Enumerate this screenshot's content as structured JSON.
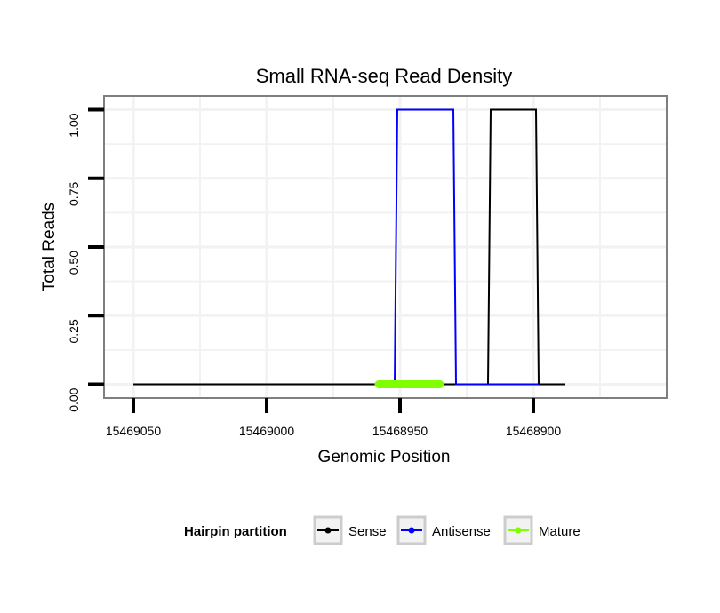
{
  "chart_data": {
    "type": "line",
    "title": "Small RNA-seq Read Density",
    "xlabel": "Genomic Position",
    "ylabel": "Total Reads",
    "x_reversed": true,
    "xlim": [
      15469061,
      15468850
    ],
    "ylim": [
      -0.05,
      1.05
    ],
    "x_ticks": [
      15469050,
      15469000,
      15468950,
      15468900
    ],
    "x_tick_labels": [
      "15469050",
      "15469000",
      "15468950",
      "15468900"
    ],
    "y_ticks": [
      0,
      0.25,
      0.5,
      0.75,
      1
    ],
    "y_tick_labels": [
      "0.00",
      "0.25",
      "0.50",
      "0.75",
      "1.00"
    ],
    "grid": true,
    "series": [
      {
        "name": "Sense",
        "color": "#000000",
        "x": [
          15469050,
          15468917,
          15468916,
          15468899,
          15468898,
          15468888
        ],
        "values": [
          0,
          0,
          1,
          1,
          0,
          0
        ]
      },
      {
        "name": "Antisense",
        "color": "#0000ff",
        "x": [
          15468952,
          15468951,
          15468930,
          15468929,
          15468917,
          15468898
        ],
        "values": [
          0,
          1,
          1,
          0,
          0,
          0
        ]
      },
      {
        "name": "Mature",
        "color": "#7fff00",
        "x": [
          15468958,
          15468935
        ],
        "values": [
          0,
          0
        ]
      }
    ],
    "legend": {
      "title": "Hairpin partition",
      "position": "bottom",
      "entries": [
        "Sense",
        "Antisense",
        "Mature"
      ]
    }
  }
}
